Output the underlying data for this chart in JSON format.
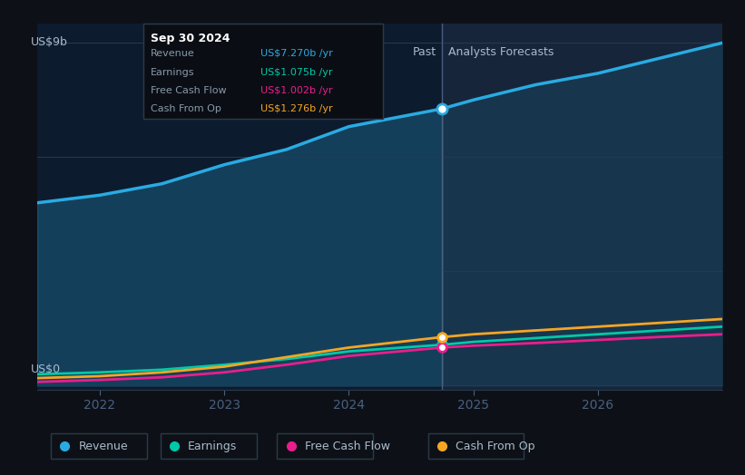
{
  "bg_color": "#0d1117",
  "plot_bg_color": "#0d1b2e",
  "plot_bg_forecast": "#1a2a3a",
  "ylabel_top": "US$9b",
  "ylabel_bottom": "US$0",
  "x_ticks": [
    2022,
    2023,
    2024,
    2025,
    2026
  ],
  "divider_x": 2024.75,
  "past_label": "Past",
  "forecast_label": "Analysts Forecasts",
  "revenue": {
    "x": [
      2021.5,
      2022.0,
      2022.5,
      2023.0,
      2023.5,
      2024.0,
      2024.75,
      2025.0,
      2025.5,
      2026.0,
      2026.5,
      2027.0
    ],
    "y": [
      4.8,
      5.0,
      5.3,
      5.8,
      6.2,
      6.8,
      7.27,
      7.5,
      7.9,
      8.2,
      8.6,
      9.0
    ],
    "color": "#29abe2",
    "label": "Revenue",
    "marker_x": 2024.75,
    "marker_y": 7.27
  },
  "earnings": {
    "x": [
      2021.5,
      2022.0,
      2022.5,
      2023.0,
      2023.5,
      2024.0,
      2024.75,
      2025.0,
      2025.5,
      2026.0,
      2026.5,
      2027.0
    ],
    "y": [
      0.3,
      0.35,
      0.42,
      0.55,
      0.7,
      0.9,
      1.075,
      1.15,
      1.25,
      1.35,
      1.45,
      1.55
    ],
    "color": "#00c9a7",
    "label": "Earnings",
    "marker_x": 2024.75,
    "marker_y": 1.075
  },
  "free_cash_flow": {
    "x": [
      2021.5,
      2022.0,
      2022.5,
      2023.0,
      2023.5,
      2024.0,
      2024.75,
      2025.0,
      2025.5,
      2026.0,
      2026.5,
      2027.0
    ],
    "y": [
      0.1,
      0.15,
      0.22,
      0.35,
      0.55,
      0.78,
      1.002,
      1.05,
      1.12,
      1.2,
      1.28,
      1.35
    ],
    "color": "#e91e8c",
    "label": "Free Cash Flow",
    "marker_x": 2024.75,
    "marker_y": 1.002
  },
  "cash_from_op": {
    "x": [
      2021.5,
      2022.0,
      2022.5,
      2023.0,
      2023.5,
      2024.0,
      2024.75,
      2025.0,
      2025.5,
      2026.0,
      2026.5,
      2027.0
    ],
    "y": [
      0.2,
      0.25,
      0.35,
      0.5,
      0.75,
      1.0,
      1.276,
      1.35,
      1.45,
      1.55,
      1.65,
      1.75
    ],
    "color": "#f5a623",
    "label": "Cash From Op",
    "marker_x": 2024.75,
    "marker_y": 1.276
  },
  "tooltip": {
    "date": "Sep 30 2024",
    "bg": "#0a0e14",
    "border": "#2a3a4a",
    "text_color": "#8899aa",
    "rows": [
      {
        "label": "Revenue",
        "value": "US$7.270b /yr",
        "color": "#29abe2"
      },
      {
        "label": "Earnings",
        "value": "US$1.075b /yr",
        "color": "#00c9a7"
      },
      {
        "label": "Free Cash Flow",
        "value": "US$1.002b /yr",
        "color": "#e91e8c"
      },
      {
        "label": "Cash From Op",
        "value": "US$1.276b /yr",
        "color": "#f5a623"
      }
    ]
  },
  "legend": [
    {
      "label": "Revenue",
      "color": "#29abe2"
    },
    {
      "label": "Earnings",
      "color": "#00c9a7"
    },
    {
      "label": "Free Cash Flow",
      "color": "#e91e8c"
    },
    {
      "label": "Cash From Op",
      "color": "#f5a623"
    }
  ],
  "xmin": 2021.5,
  "xmax": 2027.0,
  "ymin": -0.1,
  "ymax": 9.5
}
